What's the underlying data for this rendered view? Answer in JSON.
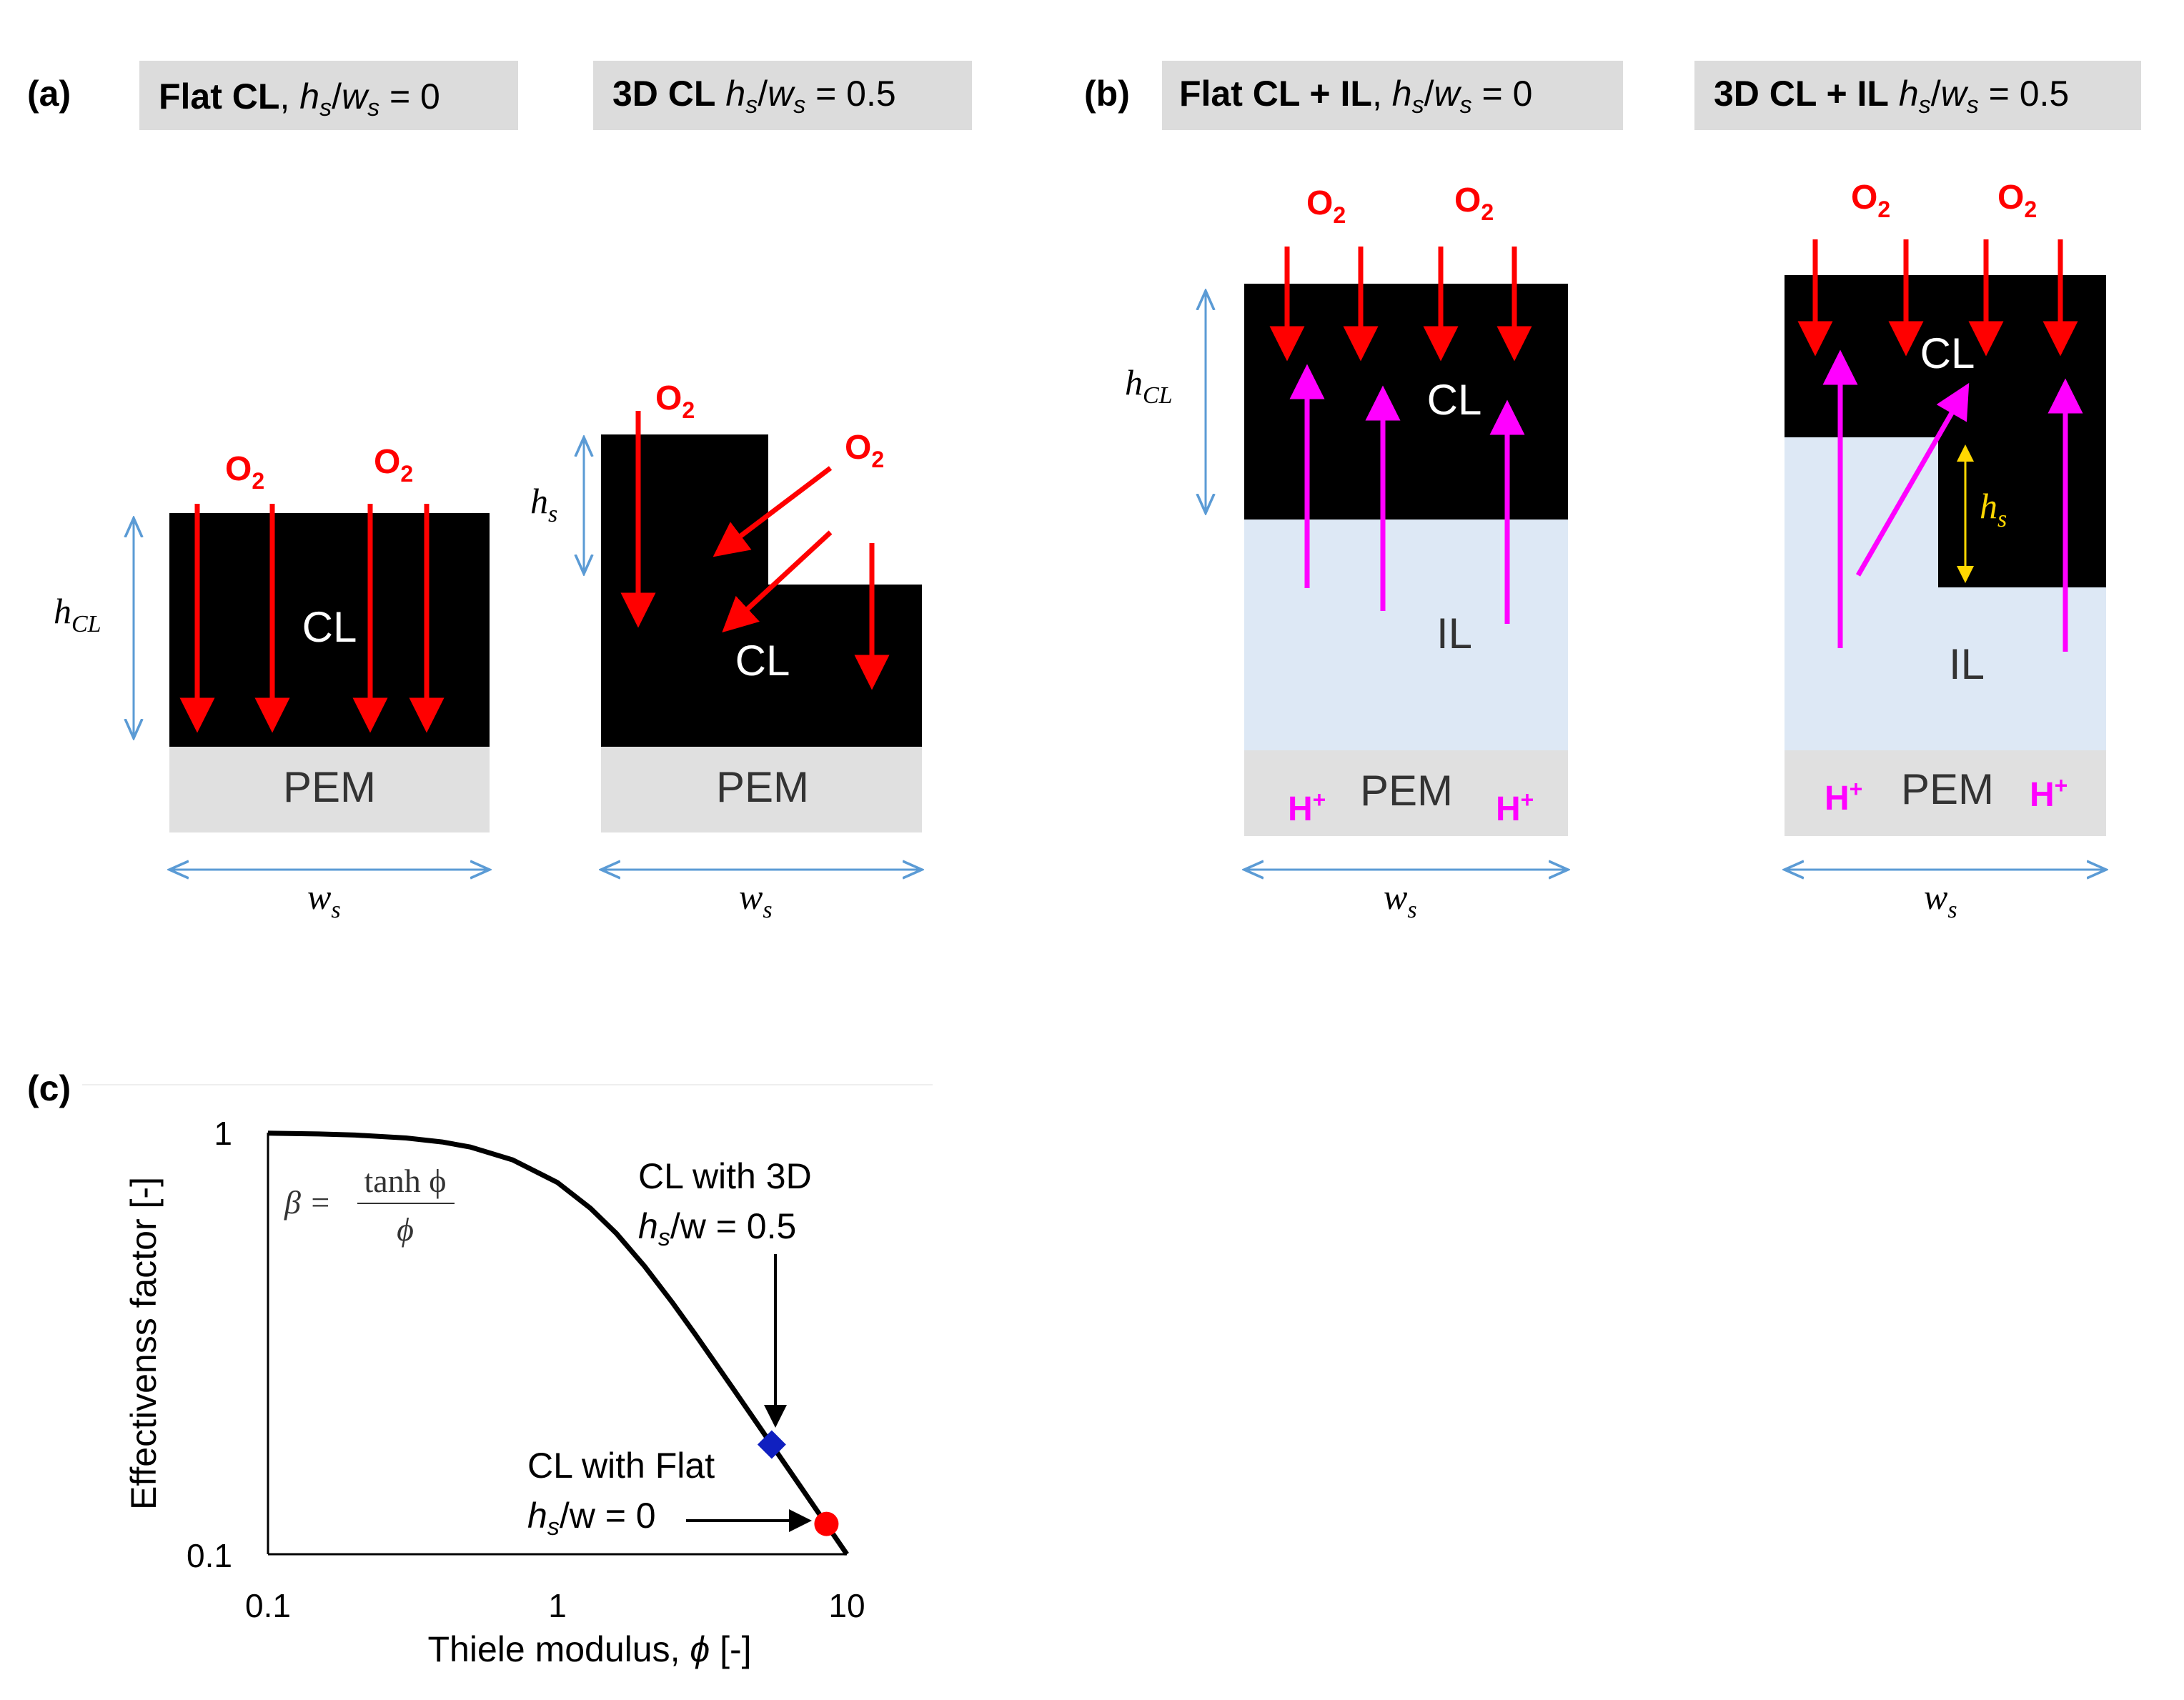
{
  "panels": {
    "a": {
      "label": "(a)",
      "diagrams": [
        {
          "header_bold": "Flat CL",
          "header_sep": ",",
          "header_h": "h",
          "header_hsub": "s",
          "header_slash": "/",
          "header_w": "w",
          "header_wsub": "s",
          "header_value": " = 0",
          "o2_left": "O",
          "o2_right": "O",
          "o2_sub": "2",
          "cl": "CL",
          "pem": "PEM",
          "h_label": "h",
          "h_sub": "CL",
          "w_label": "w",
          "w_sub": "s"
        },
        {
          "header_bold": "3D CL",
          "header_h": "h",
          "header_hsub": "s",
          "header_slash": "/",
          "header_w": "w",
          "header_wsub": "s",
          "header_value": " = 0.5",
          "o2_left": "O",
          "o2_right": "O",
          "o2_sub": "2",
          "cl": "CL",
          "pem": "PEM",
          "h_label": "h",
          "h_sub": "s",
          "w_label": "w",
          "w_sub": "s"
        }
      ]
    },
    "b": {
      "label": "(b)",
      "diagrams": [
        {
          "header_bold": "Flat CL + IL",
          "header_sep": ",",
          "header_h": "h",
          "header_hsub": "s",
          "header_slash": "/",
          "header_w": "w",
          "header_wsub": "s",
          "header_value": " = 0",
          "o2_left": "O",
          "o2_right": "O",
          "o2_sub": "2",
          "cl": "CL",
          "il": "IL",
          "pem": "PEM",
          "hplus_left": "H",
          "hplus_right": "H",
          "hplus_sup": "+",
          "h_label": "h",
          "h_sub": "CL",
          "w_label": "w",
          "w_sub": "s"
        },
        {
          "header_bold": "3D CL + IL",
          "header_h": "h",
          "header_hsub": "s",
          "header_slash": "/",
          "header_w": "w",
          "header_wsub": "s",
          "header_value": " = 0.5",
          "o2_left": "O",
          "o2_right": "O",
          "o2_sub": "2",
          "cl": "CL",
          "il": "IL",
          "pem": "PEM",
          "hplus_left": "H",
          "hplus_right": "H",
          "hplus_sup": "+",
          "h_label": "h",
          "h_sub": "s",
          "w_label": "w",
          "w_sub": "s"
        }
      ]
    },
    "c": {
      "label": "(c)"
    }
  },
  "colors": {
    "o2_arrow": "#ff0000",
    "proton_arrow": "#ff00ff",
    "dimension_arrow": "#5b9bd5",
    "hs_arrow": "#ffd700",
    "cl_fill": "#000000",
    "pem_fill": "#e0e0e0",
    "il_fill": "#dde8f5",
    "header_fill": "#dcdcdc",
    "curve": "#000000",
    "marker_3d": "#1020c0",
    "marker_flat": "#ff0000"
  },
  "chart_data": {
    "type": "line",
    "title": "",
    "x_scale": "log",
    "y_scale": "log",
    "xlim": [
      0.1,
      10
    ],
    "ylim": [
      0.1,
      1
    ],
    "xticks": [
      "0.1",
      "1",
      "10"
    ],
    "yticks": [
      "0.1",
      "1"
    ],
    "xlabel_prefix": "Thiele modulus, ",
    "xlabel_symbol": "ϕ",
    "xlabel_suffix": " [-]",
    "ylabel": "Effectivenss factor [-]",
    "formula": {
      "lhs": "β =",
      "numerator": "tanh ϕ",
      "denominator": "ϕ"
    },
    "series": [
      {
        "name": "β = tanh ϕ / ϕ",
        "x": [
          0.1,
          0.15,
          0.2,
          0.3,
          0.4,
          0.5,
          0.7,
          1.0,
          1.3,
          1.6,
          2.0,
          2.5,
          3.0,
          4.0,
          5.0,
          5.5,
          6.0,
          7.0,
          8.0,
          8.5,
          9.0,
          10.0
        ],
        "y": [
          0.9967,
          0.9926,
          0.9869,
          0.971,
          0.95,
          0.9242,
          0.8619,
          0.7616,
          0.6616,
          0.5761,
          0.482,
          0.3946,
          0.3317,
          0.2498,
          0.2,
          0.1818,
          0.1667,
          0.1429,
          0.125,
          0.1176,
          0.1111,
          0.1
        ]
      }
    ],
    "points": [
      {
        "name": "CL with 3D",
        "x": 5.5,
        "y": 0.182,
        "marker": "diamond"
      },
      {
        "name": "CL with Flat",
        "x": 8.5,
        "y": 0.118,
        "marker": "circle"
      }
    ],
    "annotations": [
      {
        "line1": "CL with 3D",
        "line2_h": "h",
        "line2_sub": "s",
        "line2_rest": "/w = 0.5"
      },
      {
        "line1": "CL with Flat",
        "line2_h": "h",
        "line2_sub": "s",
        "line2_rest": "/w = 0"
      }
    ]
  }
}
